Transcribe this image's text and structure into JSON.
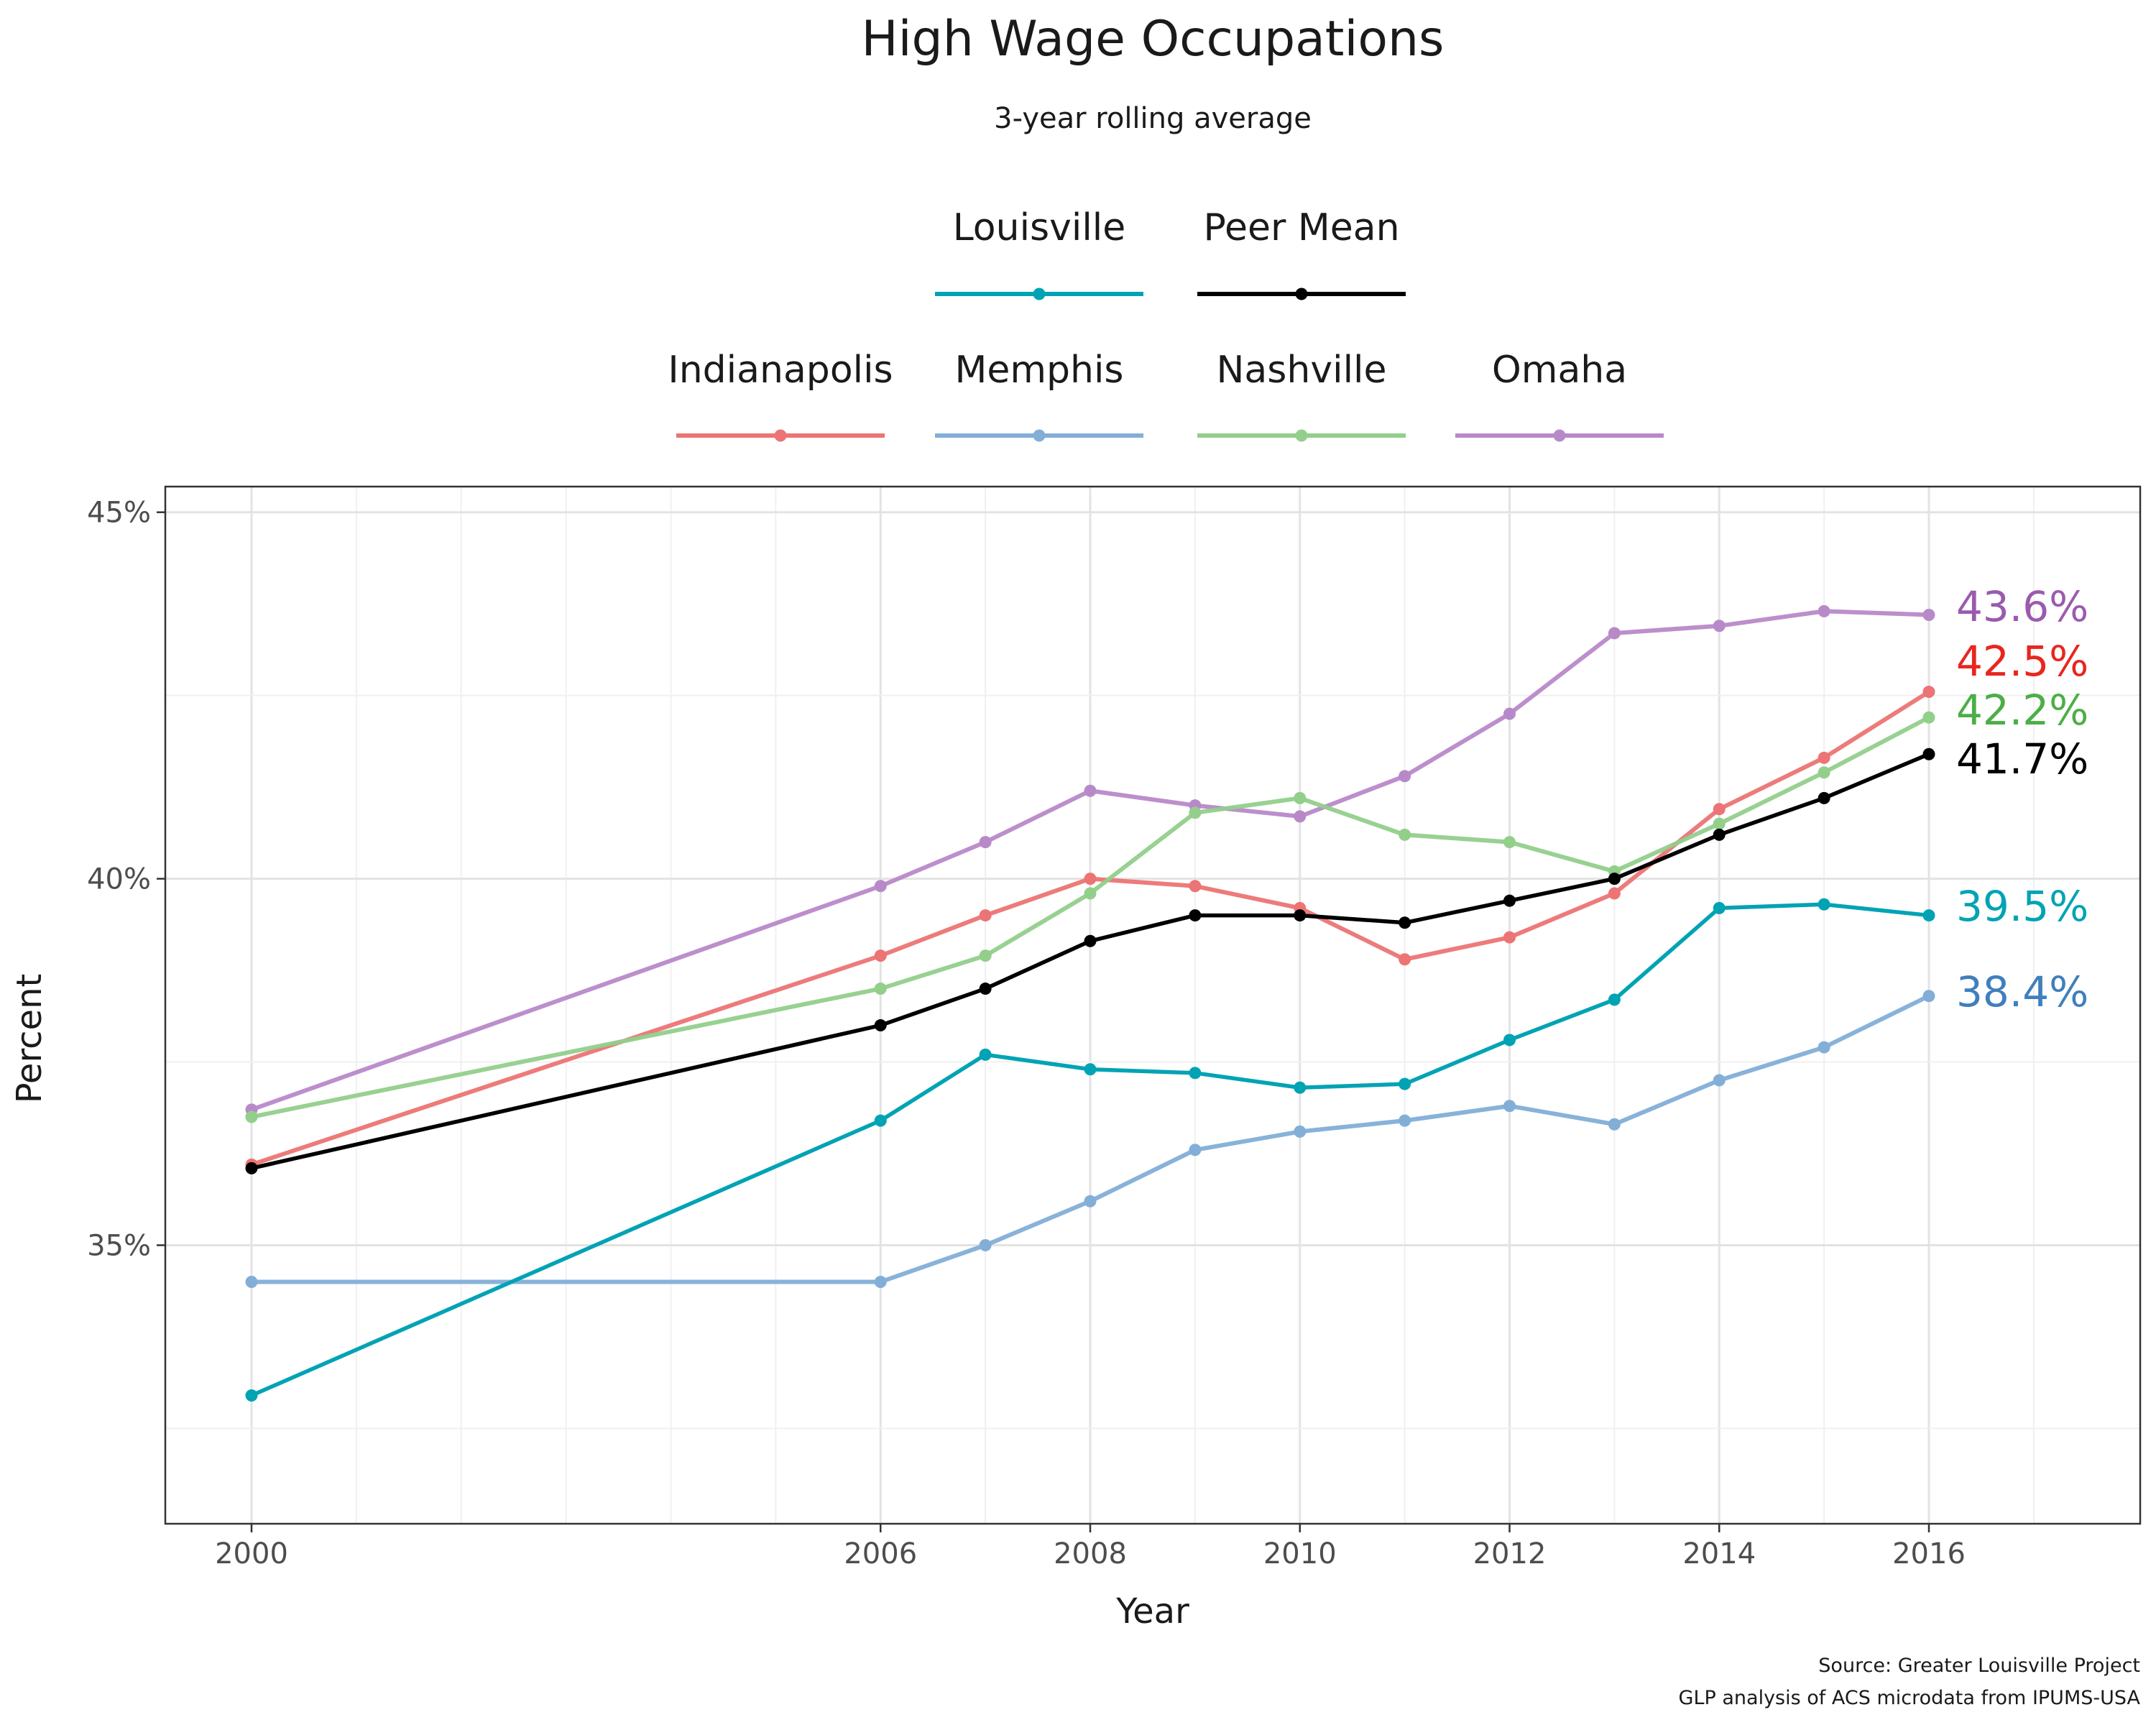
{
  "chart_data": {
    "type": "line",
    "title": "High Wage Occupations",
    "subtitle": "3-year rolling average",
    "xlabel": "Year",
    "ylabel": "Percent",
    "x_ticks": [
      2000,
      2006,
      2008,
      2010,
      2012,
      2014,
      2016
    ],
    "x_tick_labels": [
      "2000",
      "2006",
      "2008",
      "2010",
      "2012",
      "2014",
      "2016"
    ],
    "y_ticks": [
      35,
      40,
      45
    ],
    "y_tick_labels": [
      "35%",
      "40%",
      "45%"
    ],
    "xlim": [
      1999.15,
      2018.05
    ],
    "ylim": [
      31.2,
      45.35
    ],
    "grid": true,
    "legend_placement": "top",
    "legend_rows": [
      [
        "Louisville",
        "Peer Mean"
      ],
      [
        "Indianapolis",
        "Memphis",
        "Nashville",
        "Omaha"
      ]
    ],
    "x": [
      2000,
      2006,
      2007,
      2008,
      2009,
      2010,
      2011,
      2012,
      2013,
      2014,
      2015,
      2016
    ],
    "series": [
      {
        "name": "Omaha",
        "color": "#b889c9",
        "label_color": "#9a5bae",
        "end_label": "43.6%",
        "values": [
          36.85,
          39.9,
          40.5,
          41.2,
          41.0,
          40.85,
          41.4,
          42.25,
          43.35,
          43.45,
          43.65,
          43.6
        ]
      },
      {
        "name": "Indianapolis",
        "color": "#ec7474",
        "label_color": "#e8261f",
        "end_label": "42.5%",
        "values": [
          36.1,
          38.95,
          39.5,
          40.0,
          39.9,
          39.6,
          38.9,
          39.2,
          39.8,
          40.95,
          41.65,
          42.55
        ]
      },
      {
        "name": "Nashville",
        "color": "#92cf8b",
        "label_color": "#4cae47",
        "end_label": "42.2%",
        "values": [
          36.75,
          38.5,
          38.95,
          39.8,
          40.9,
          41.1,
          40.6,
          40.5,
          40.1,
          40.75,
          41.45,
          42.2
        ]
      },
      {
        "name": "Memphis",
        "color": "#82aed7",
        "label_color": "#3f7fbd",
        "end_label": "38.4%",
        "values": [
          34.5,
          34.5,
          35.0,
          35.6,
          36.3,
          36.55,
          36.7,
          36.9,
          36.65,
          37.25,
          37.7,
          38.4
        ]
      },
      {
        "name": "Louisville",
        "color": "#00a3b4",
        "label_color": "#00a3b4",
        "end_label": "39.5%",
        "values": [
          32.95,
          36.7,
          37.6,
          37.4,
          37.35,
          37.15,
          37.2,
          37.8,
          38.35,
          39.6,
          39.65,
          39.5
        ]
      },
      {
        "name": "Peer Mean",
        "color": "#000000",
        "label_color": "#000000",
        "end_label": "41.7%",
        "values": [
          36.05,
          38.0,
          38.5,
          39.15,
          39.5,
          39.5,
          39.4,
          39.7,
          40.0,
          40.6,
          41.1,
          41.7
        ]
      }
    ],
    "caption": [
      "Source: Greater Louisville Project",
      "GLP analysis of ACS microdata from IPUMS-USA"
    ]
  }
}
